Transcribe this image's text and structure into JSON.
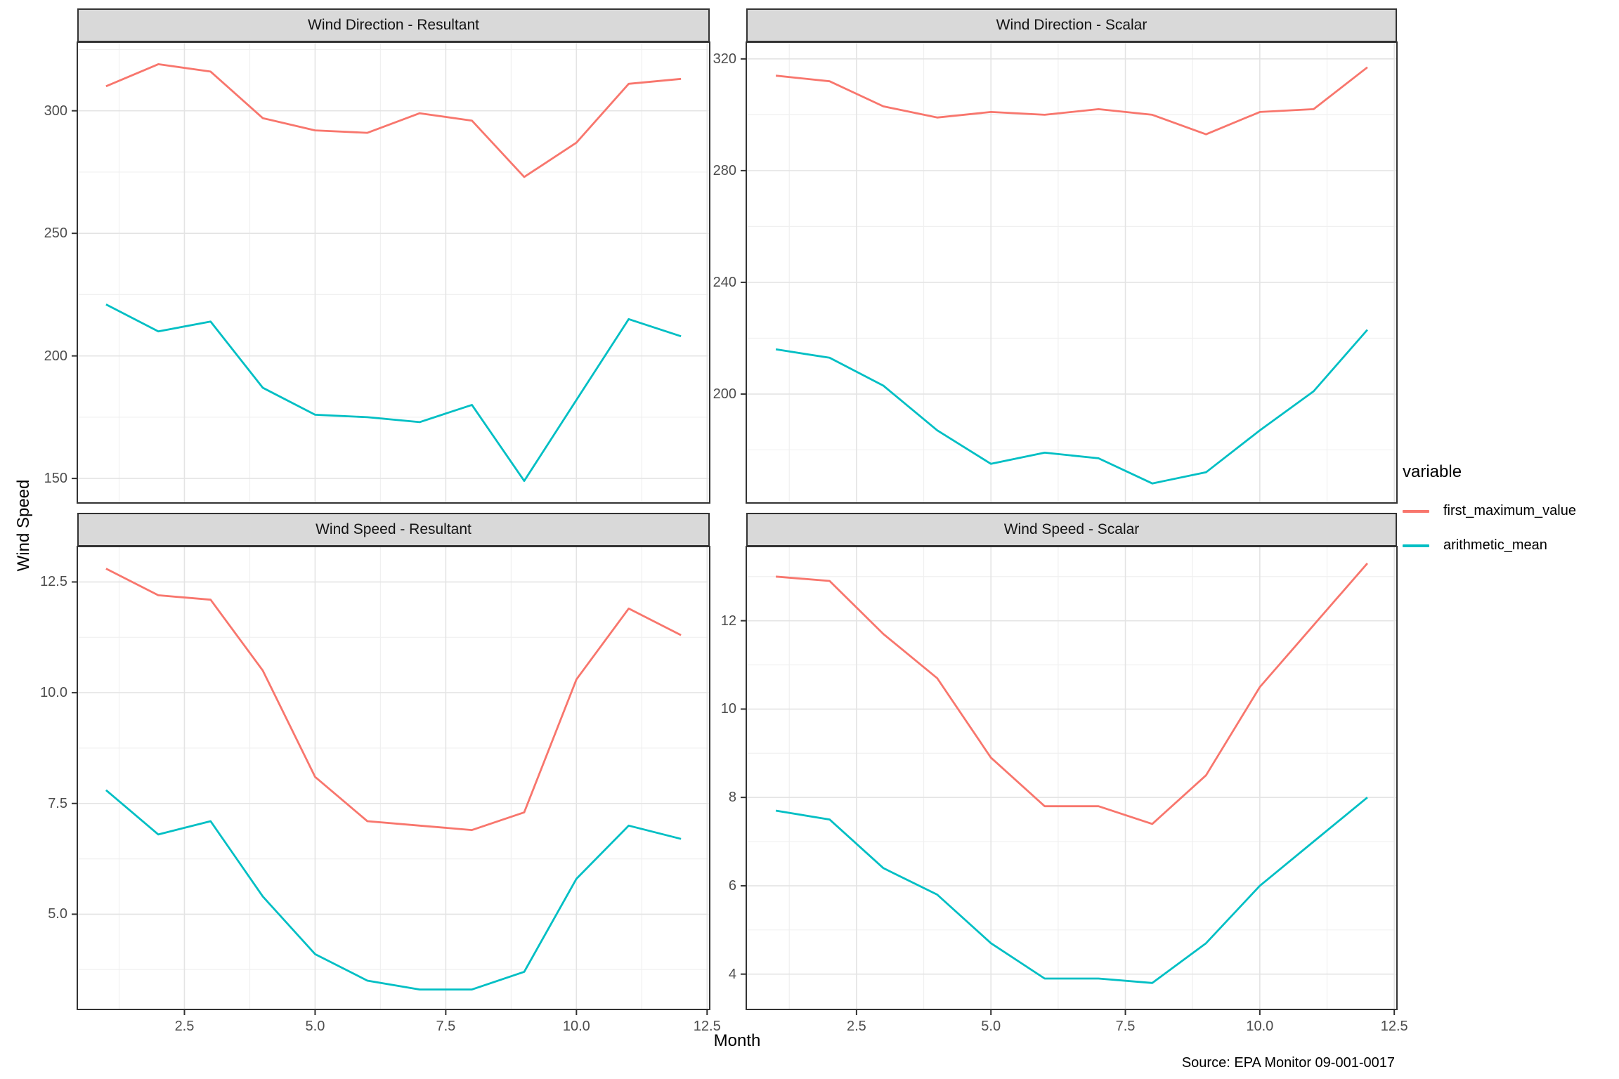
{
  "figure": {
    "y_axis_title": "Wind Speed",
    "x_axis_title": "Month",
    "source": "Source: EPA Monitor 09-001-0017",
    "legend": {
      "title": "variable",
      "items": [
        {
          "label": "first_maximum_value",
          "color": "#F8766D"
        },
        {
          "label": "arithmetic_mean",
          "color": "#00BFC4"
        }
      ]
    },
    "x": [
      1,
      2,
      3,
      4,
      5,
      6,
      7,
      8,
      9,
      10,
      11,
      12
    ],
    "x_ticks": [
      2.5,
      5,
      7.5,
      10,
      12.5
    ],
    "x_tick_labels": [
      "2.5",
      "5.0",
      "7.5",
      "10.0",
      "12.5"
    ],
    "x_minor": [
      1.25,
      3.75,
      6.25,
      8.75,
      11.25
    ],
    "xlim": [
      0.45,
      12.55
    ]
  },
  "chart_data": [
    {
      "type": "line",
      "title": "Wind Direction - Resultant",
      "col": 0,
      "row": 0,
      "y_ticks": [
        150,
        200,
        250,
        300
      ],
      "y_tick_labels": [
        "150",
        "200",
        "250",
        "300"
      ],
      "y_minor": [
        175,
        225,
        275,
        325
      ],
      "ylim": [
        140,
        328
      ],
      "series": [
        {
          "name": "first_maximum_value",
          "values": [
            310,
            319,
            316,
            297,
            292,
            291,
            299,
            296,
            273,
            287,
            311,
            313
          ]
        },
        {
          "name": "arithmetic_mean",
          "values": [
            221,
            210,
            214,
            187,
            176,
            175,
            173,
            180,
            149,
            182,
            215,
            208
          ]
        }
      ]
    },
    {
      "type": "line",
      "title": "Wind Direction - Scalar",
      "col": 1,
      "row": 0,
      "y_ticks": [
        200,
        240,
        280,
        320
      ],
      "y_tick_labels": [
        "200",
        "240",
        "280",
        "320"
      ],
      "y_minor": [
        180,
        220,
        260,
        300
      ],
      "ylim": [
        161,
        326
      ],
      "series": [
        {
          "name": "first_maximum_value",
          "values": [
            314,
            312,
            303,
            299,
            301,
            300,
            302,
            300,
            293,
            301,
            302,
            317
          ]
        },
        {
          "name": "arithmetic_mean",
          "values": [
            216,
            213,
            203,
            187,
            175,
            179,
            177,
            168,
            172,
            187,
            201,
            223
          ]
        }
      ]
    },
    {
      "type": "line",
      "title": "Wind Speed - Resultant",
      "col": 0,
      "row": 1,
      "y_ticks": [
        5.0,
        7.5,
        10.0,
        12.5
      ],
      "y_tick_labels": [
        "5.0",
        "7.5",
        "10.0",
        "12.5"
      ],
      "y_minor": [
        3.75,
        6.25,
        8.75,
        11.25
      ],
      "ylim": [
        2.85,
        13.3
      ],
      "series": [
        {
          "name": "first_maximum_value",
          "values": [
            12.8,
            12.2,
            12.1,
            10.5,
            8.1,
            7.1,
            7.0,
            6.9,
            7.3,
            10.3,
            11.9,
            11.3
          ]
        },
        {
          "name": "arithmetic_mean",
          "values": [
            7.8,
            6.8,
            7.1,
            5.4,
            4.1,
            3.5,
            3.3,
            3.3,
            3.7,
            5.8,
            7.0,
            6.7
          ]
        }
      ]
    },
    {
      "type": "line",
      "title": "Wind Speed - Scalar",
      "col": 1,
      "row": 1,
      "y_ticks": [
        4,
        6,
        8,
        10,
        12
      ],
      "y_tick_labels": [
        "4",
        "6",
        "8",
        "10",
        "12"
      ],
      "y_minor": [
        5,
        7,
        9,
        11,
        13
      ],
      "ylim": [
        3.2,
        13.68
      ],
      "series": [
        {
          "name": "first_maximum_value",
          "values": [
            13.0,
            12.9,
            11.7,
            10.7,
            8.9,
            7.8,
            7.8,
            7.4,
            8.5,
            10.5,
            11.9,
            13.3
          ]
        },
        {
          "name": "arithmetic_mean",
          "values": [
            7.7,
            7.5,
            6.4,
            5.8,
            4.7,
            3.9,
            3.9,
            3.8,
            4.7,
            6.0,
            7.0,
            8.0
          ]
        }
      ]
    }
  ],
  "colors": {
    "strip_background": "#D9D9D9",
    "panel_border": "#333333",
    "grid_major": "#E4E4E4",
    "grid_minor": "#F0F0F0",
    "tick_label": "#4D4D4D",
    "series_red": "#F8766D",
    "series_teal": "#00BFC4"
  }
}
